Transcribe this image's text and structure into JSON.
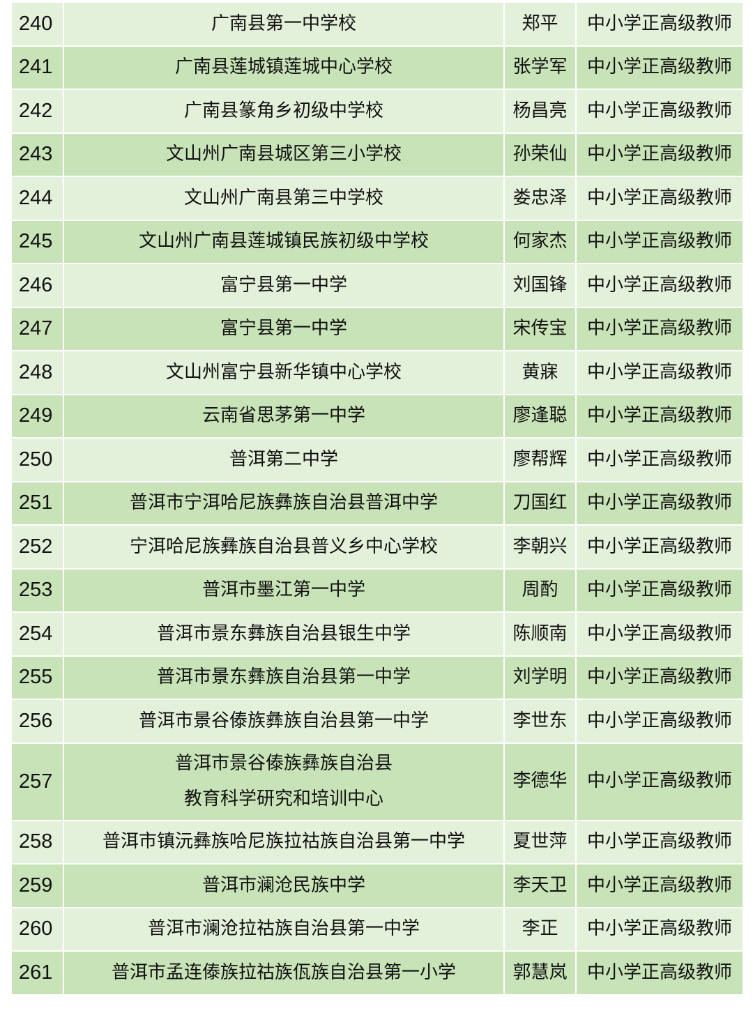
{
  "colors": {
    "row_light": "#e3f0da",
    "row_dark": "#c9e3b8",
    "border": "#ffffff"
  },
  "rows": [
    {
      "no": "240",
      "school": "广南县第一中学校",
      "name": "郑平",
      "title": "中小学正高级教师"
    },
    {
      "no": "241",
      "school": "广南县莲城镇莲城中心学校",
      "name": "张学军",
      "title": "中小学正高级教师"
    },
    {
      "no": "242",
      "school": "广南县篆角乡初级中学校",
      "name": "杨昌亮",
      "title": "中小学正高级教师"
    },
    {
      "no": "243",
      "school": "文山州广南县城区第三小学校",
      "name": "孙荣仙",
      "title": "中小学正高级教师"
    },
    {
      "no": "244",
      "school": "文山州广南县第三中学校",
      "name": "娄忠泽",
      "title": "中小学正高级教师"
    },
    {
      "no": "245",
      "school": "文山州广南县莲城镇民族初级中学校",
      "name": "何家杰",
      "title": "中小学正高级教师"
    },
    {
      "no": "246",
      "school": "富宁县第一中学",
      "name": "刘国锋",
      "title": "中小学正高级教师"
    },
    {
      "no": "247",
      "school": "富宁县第一中学",
      "name": "宋传宝",
      "title": "中小学正高级教师"
    },
    {
      "no": "248",
      "school": "文山州富宁县新华镇中心学校",
      "name": "黄寐",
      "title": "中小学正高级教师"
    },
    {
      "no": "249",
      "school": "云南省思茅第一中学",
      "name": "廖逢聪",
      "title": "中小学正高级教师"
    },
    {
      "no": "250",
      "school": "普洱第二中学",
      "name": "廖帮辉",
      "title": "中小学正高级教师"
    },
    {
      "no": "251",
      "school": "普洱市宁洱哈尼族彝族自治县普洱中学",
      "name": "刀国红",
      "title": "中小学正高级教师"
    },
    {
      "no": "252",
      "school": "宁洱哈尼族彝族自治县普义乡中心学校",
      "name": "李朝兴",
      "title": "中小学正高级教师"
    },
    {
      "no": "253",
      "school": "普洱市墨江第一中学",
      "name": "周酌",
      "title": "中小学正高级教师"
    },
    {
      "no": "254",
      "school": "普洱市景东彝族自治县银生中学",
      "name": "陈顺南",
      "title": "中小学正高级教师"
    },
    {
      "no": "255",
      "school": "普洱市景东彝族自治县第一中学",
      "name": "刘学明",
      "title": "中小学正高级教师"
    },
    {
      "no": "256",
      "school": "普洱市景谷傣族彝族自治县第一中学",
      "name": "李世东",
      "title": "中小学正高级教师"
    },
    {
      "no": "257",
      "school": "普洱市景谷傣族彝族自治县",
      "school_line2": "教育科学研究和培训中心",
      "name": "李德华",
      "title": "中小学正高级教师"
    },
    {
      "no": "258",
      "school": "普洱市镇沅彝族哈尼族拉祜族自治县第一中学",
      "name": "夏世萍",
      "title": "中小学正高级教师"
    },
    {
      "no": "259",
      "school": "普洱市澜沧民族中学",
      "name": "李天卫",
      "title": "中小学正高级教师"
    },
    {
      "no": "260",
      "school": "普洱市澜沧拉祜族自治县第一中学",
      "name": "李正",
      "title": "中小学正高级教师"
    },
    {
      "no": "261",
      "school": "普洱市孟连傣族拉祜族佤族自治县第一小学",
      "name": "郭慧岚",
      "title": "中小学正高级教师"
    }
  ]
}
